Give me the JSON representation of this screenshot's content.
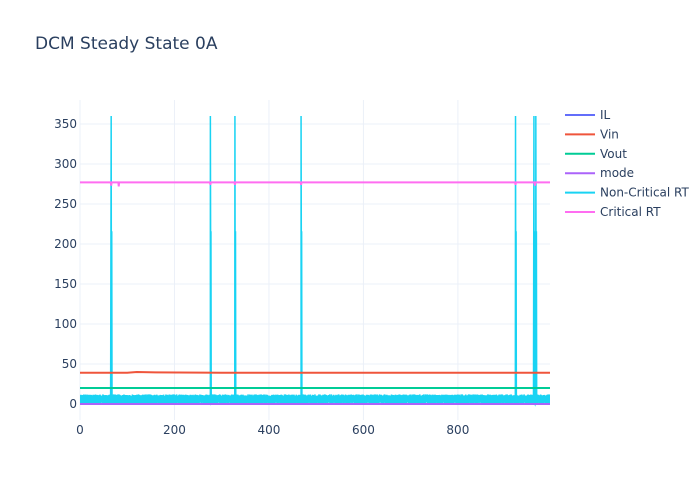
{
  "chart_data": {
    "type": "line",
    "title": "DCM Steady State 0A",
    "xlabel": "",
    "ylabel": "",
    "xlim": [
      0,
      995
    ],
    "ylim": [
      -20,
      380
    ],
    "x_ticks": [
      0,
      200,
      400,
      600,
      800
    ],
    "y_ticks": [
      0,
      50,
      100,
      150,
      200,
      250,
      300,
      350
    ],
    "grid": true,
    "legend_position": "top-right",
    "series": [
      {
        "name": "IL",
        "color": "#636efa",
        "points": [
          [
            0,
            0
          ],
          [
            995,
            0
          ]
        ]
      },
      {
        "name": "Vin",
        "color": "#ef553b",
        "points": [
          [
            0,
            39
          ],
          [
            100,
            39
          ],
          [
            120,
            40
          ],
          [
            160,
            39.5
          ],
          [
            300,
            39
          ],
          [
            995,
            39
          ]
        ]
      },
      {
        "name": "Vout",
        "color": "#00cc96",
        "points": [
          [
            0,
            20
          ],
          [
            995,
            20
          ]
        ]
      },
      {
        "name": "mode",
        "color": "#ab63fa",
        "points": [
          [
            0,
            0
          ],
          [
            995,
            0
          ]
        ]
      },
      {
        "name": "Non-Critical RT",
        "color": "#19d3f3",
        "band": [
          0,
          12
        ],
        "spikes": [
          {
            "x": 66,
            "peak": 360
          },
          {
            "x": 276,
            "peak": 360
          },
          {
            "x": 328,
            "peak": 360
          },
          {
            "x": 468,
            "peak": 360
          },
          {
            "x": 922,
            "peak": 360
          },
          {
            "x": 961,
            "peak": 360
          },
          {
            "x": 965,
            "peak": 360
          }
        ]
      },
      {
        "name": "Critical RT",
        "color": "#ff6df1",
        "base": 277,
        "dips": [
          {
            "x": 66,
            "value": 273
          },
          {
            "x": 82,
            "value": 272
          },
          {
            "x": 276,
            "value": 274
          },
          {
            "x": 328,
            "value": 274
          },
          {
            "x": 468,
            "value": 274
          },
          {
            "x": 922,
            "value": 274
          },
          {
            "x": 963,
            "value": 273
          }
        ]
      }
    ]
  }
}
